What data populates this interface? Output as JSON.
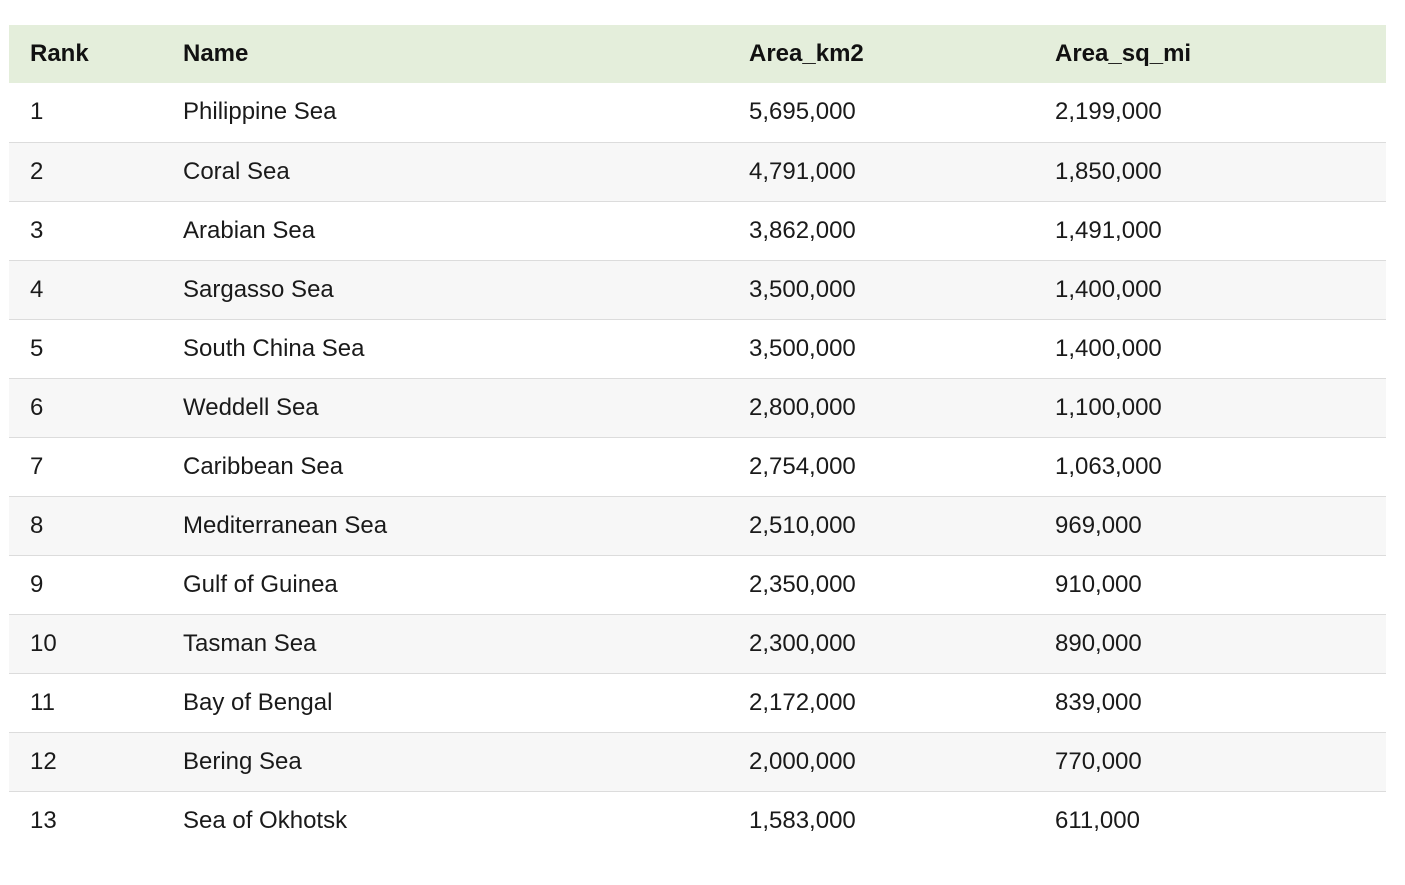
{
  "table": {
    "headers": [
      "Rank",
      "Name",
      "Area_km2",
      "Area_sq_mi"
    ],
    "rows": [
      [
        "1",
        "Philippine Sea",
        "5,695,000",
        "2,199,000"
      ],
      [
        "2",
        "Coral Sea",
        "4,791,000",
        "1,850,000"
      ],
      [
        "3",
        "Arabian Sea",
        "3,862,000",
        "1,491,000"
      ],
      [
        "4",
        "Sargasso Sea",
        "3,500,000",
        "1,400,000"
      ],
      [
        "5",
        "South China Sea",
        "3,500,000",
        "1,400,000"
      ],
      [
        "6",
        "Weddell Sea",
        "2,800,000",
        "1,100,000"
      ],
      [
        "7",
        "Caribbean Sea",
        "2,754,000",
        "1,063,000"
      ],
      [
        "8",
        "Mediterranean Sea",
        "2,510,000",
        "969,000"
      ],
      [
        "9",
        "Gulf of Guinea",
        "2,350,000",
        "910,000"
      ],
      [
        "10",
        "Tasman Sea",
        "2,300,000",
        "890,000"
      ],
      [
        "11",
        "Bay of Bengal",
        "2,172,000",
        "839,000"
      ],
      [
        "12",
        "Bering Sea",
        "2,000,000",
        "770,000"
      ],
      [
        "13",
        "Sea of Okhotsk",
        "1,583,000",
        "611,000"
      ]
    ]
  },
  "colors": {
    "header_bg": "#e4eedb",
    "stripe_bg": "#f7f7f7",
    "row_border": "#dcdcdc"
  }
}
